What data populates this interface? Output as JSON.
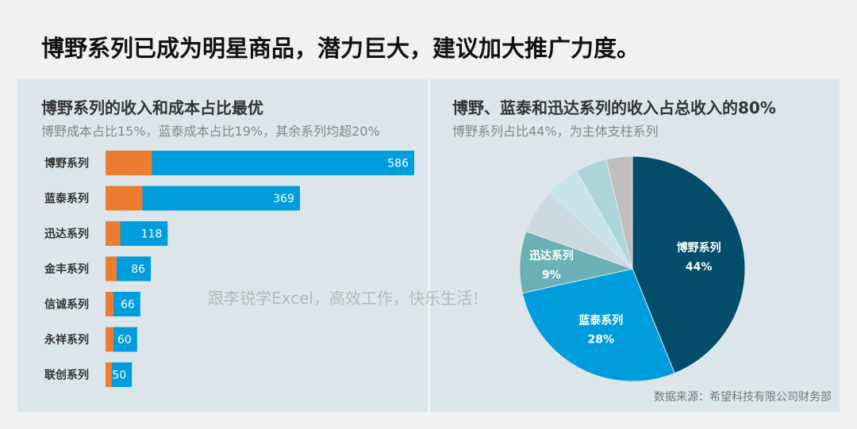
{
  "title": "博野系列已成为明星商品，潜力巨大，建议加大推广力度。",
  "watermark": "跟李锐学Excel，高效工作，快乐生活！",
  "colors": {
    "revenue": "#009ddc",
    "cost": "#ed7d31",
    "panel": "#dce6ea"
  },
  "chart_data": [
    {
      "type": "bar",
      "title": "博野系列的收入和成本占比最优",
      "subtitle": "博野成本占比15%，蓝泰成本占比19%，其余系列均超20%",
      "categories": [
        "博野系列",
        "蓝泰系列",
        "迅达系列",
        "金丰系列",
        "信诚系列",
        "永祥系列",
        "联创系列"
      ],
      "series": [
        {
          "values": [
            586,
            369,
            118,
            86,
            66,
            60,
            50
          ],
          "color": "#009ddc"
        },
        {
          "values": [
            88,
            70,
            28,
            21,
            15,
            15,
            12
          ],
          "color": "#ed7d31"
        }
      ],
      "orientation": "horizontal",
      "grid": false
    },
    {
      "type": "pie",
      "title": "博野、蓝泰和迅达系列的收入占总收入的80%",
      "subtitle": "博野系列占比44%，为主体支柱系列",
      "slices": [
        {
          "name": "博野系列",
          "value": 586,
          "label": "44%",
          "color": "#034c6a"
        },
        {
          "name": "蓝泰系列",
          "value": 369,
          "label": "28%",
          "color": "#009ddc"
        },
        {
          "name": "迅达系列",
          "value": 118,
          "label": "9%",
          "color": "#6ab0b5"
        },
        {
          "name": "金丰系列",
          "value": 86,
          "color": "#ccdadf"
        },
        {
          "name": "信诚系列",
          "value": 66,
          "color": "#c8e3ee"
        },
        {
          "name": "永祥系列",
          "value": 60,
          "color": "#acd4d9"
        },
        {
          "name": "联创系列",
          "value": 50,
          "color": "#bebebe"
        }
      ],
      "source": "数据来源：希望科技有限公司财务部"
    }
  ]
}
